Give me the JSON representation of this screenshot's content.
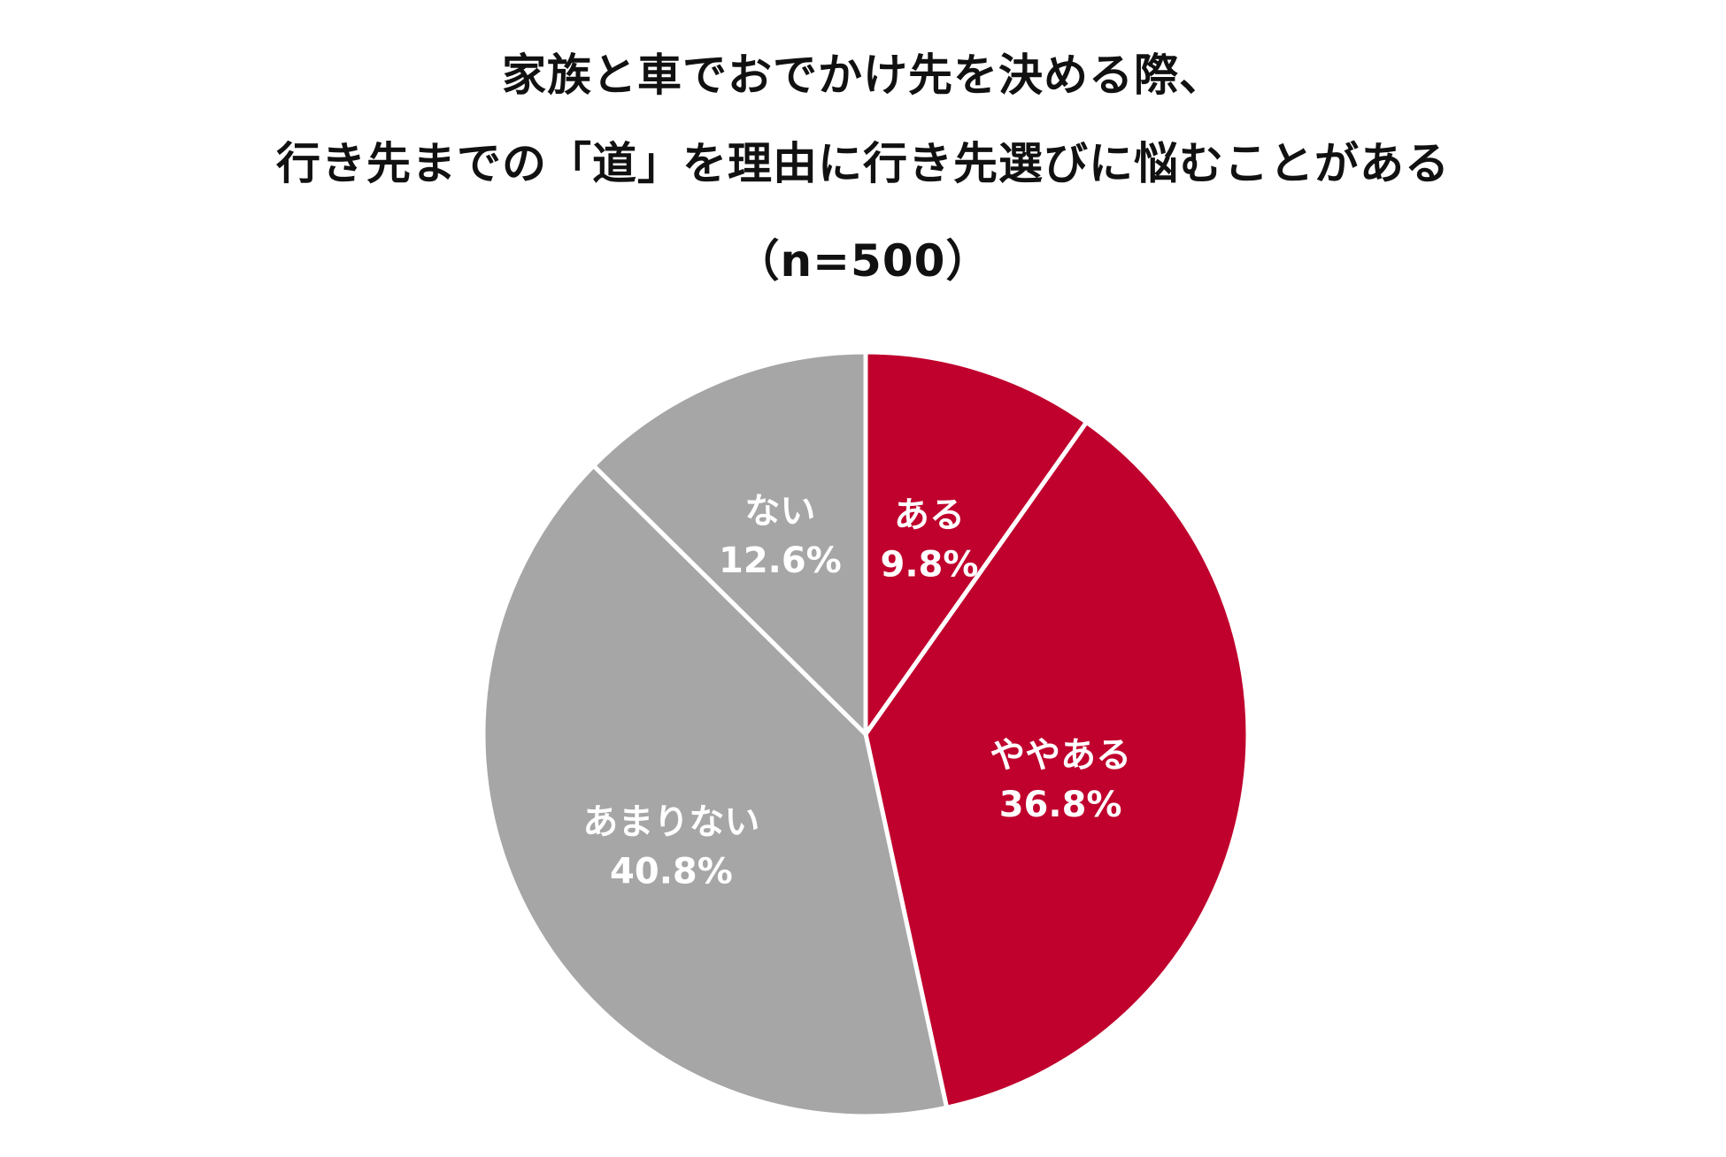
{
  "chart_data": {
    "type": "pie",
    "title_lines": [
      "家族と車でおでかけ先を決める際、",
      "行き先までの「道」を理由に行き先選びに悩むことがある",
      "（n=500）"
    ],
    "slices": [
      {
        "label": "ある",
        "value": 9.8,
        "value_label": "9.8%",
        "color": "#C0002D"
      },
      {
        "label": "ややある",
        "value": 36.8,
        "value_label": "36.8%",
        "color": "#C0002D"
      },
      {
        "label": "あまりない",
        "value": 40.8,
        "value_label": "40.8%",
        "color": "#A6A6A6"
      },
      {
        "label": "ない",
        "value": 12.6,
        "value_label": "12.6%",
        "color": "#A6A6A6"
      }
    ],
    "start": "12 o'clock",
    "direction": "clockwise",
    "legend": "none",
    "separator_color": "#FFFFFF",
    "label_color": "#FFFFFF"
  }
}
